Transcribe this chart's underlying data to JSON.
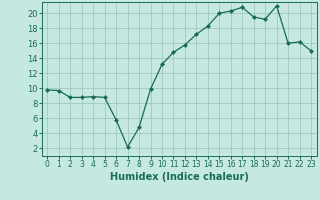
{
  "x": [
    0,
    1,
    2,
    3,
    4,
    5,
    6,
    7,
    8,
    9,
    10,
    11,
    12,
    13,
    14,
    15,
    16,
    17,
    18,
    19,
    20,
    21,
    22,
    23
  ],
  "y": [
    9.8,
    9.7,
    8.8,
    8.8,
    8.9,
    8.8,
    5.8,
    2.2,
    4.8,
    9.9,
    13.2,
    14.8,
    15.8,
    17.2,
    18.3,
    20.0,
    20.3,
    20.8,
    19.5,
    19.2,
    21.0,
    16.0,
    16.2,
    15.0
  ],
  "line_color": "#1a6b5a",
  "marker": "D",
  "marker_size": 2.0,
  "line_width": 0.9,
  "xlabel": "Humidex (Indice chaleur)",
  "xlabel_fontsize": 7,
  "xlim": [
    -0.5,
    23.5
  ],
  "ylim": [
    1.0,
    21.5
  ],
  "yticks": [
    2,
    4,
    6,
    8,
    10,
    12,
    14,
    16,
    18,
    20
  ],
  "xticks": [
    0,
    1,
    2,
    3,
    4,
    5,
    6,
    7,
    8,
    9,
    10,
    11,
    12,
    13,
    14,
    15,
    16,
    17,
    18,
    19,
    20,
    21,
    22,
    23
  ],
  "background_color": "#c5e8e0",
  "grid_color": "#a0c8c0",
  "tick_color": "#1a6b5a",
  "label_color": "#1a6b5a",
  "tick_fontsize": 5.5,
  "ytick_fontsize": 6.0
}
